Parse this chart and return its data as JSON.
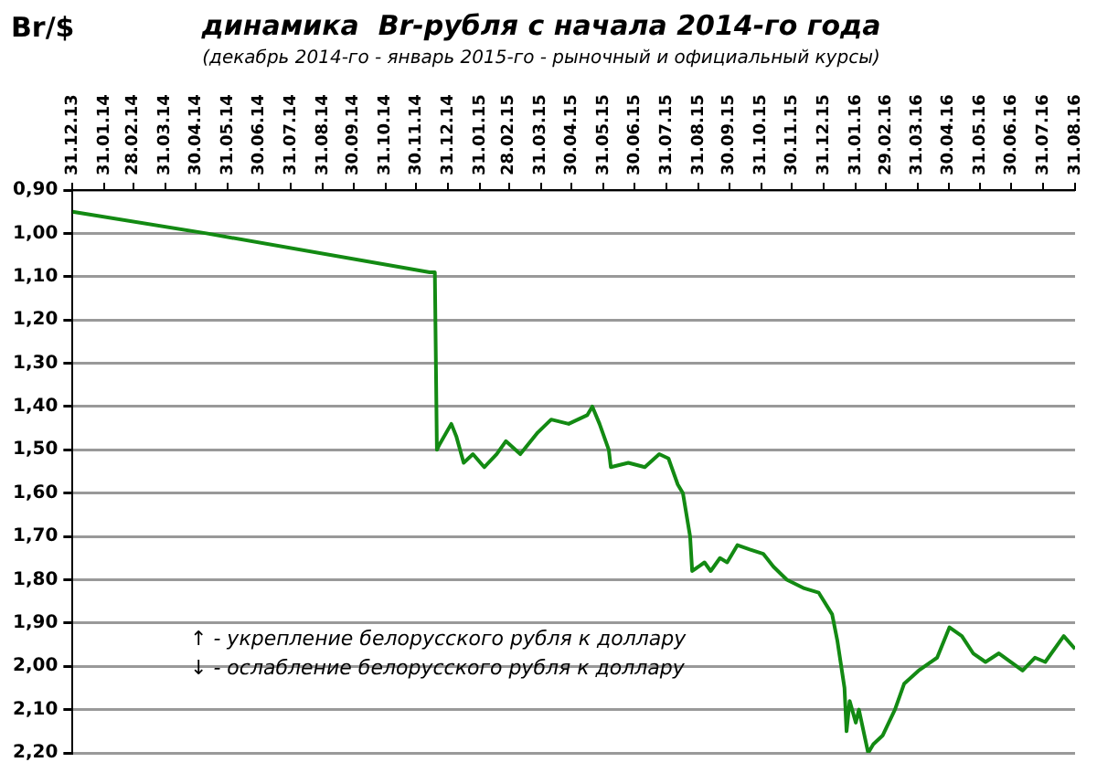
{
  "chart_data": {
    "type": "line",
    "title": "динамика  Br-рубля с начала 2014-го года",
    "subtitle": "(декабрь 2014-го - январь 2015-го - рыночный и официальный курсы)",
    "ylabel": "Br/$",
    "annotations": [
      "↑ - укрепление белорусского рубля к доллару",
      "↓ - ослабление белорусского рубля к доллару"
    ],
    "x": [
      "2013-12-31",
      "2014-05-10",
      "2014-12-13",
      "2014-12-18",
      "2014-12-20",
      "2014-12-22",
      "2015-01-03",
      "2015-01-08",
      "2015-01-15",
      "2015-01-24",
      "2015-02-04",
      "2015-02-16",
      "2015-02-25",
      "2015-03-11",
      "2015-03-28",
      "2015-04-10",
      "2015-04-27",
      "2015-05-15",
      "2015-05-20",
      "2015-05-27",
      "2015-06-05",
      "2015-06-07",
      "2015-06-24",
      "2015-07-10",
      "2015-07-24",
      "2015-08-02",
      "2015-08-11",
      "2015-08-16",
      "2015-08-23",
      "2015-08-25",
      "2015-09-06",
      "2015-09-12",
      "2015-09-21",
      "2015-09-28",
      "2015-10-08",
      "2015-10-20",
      "2015-11-02",
      "2015-11-12",
      "2015-11-25",
      "2015-12-12",
      "2015-12-26",
      "2016-01-08",
      "2016-01-13",
      "2016-01-20",
      "2016-01-22",
      "2016-01-25",
      "2016-01-31",
      "2016-02-03",
      "2016-02-12",
      "2016-02-17",
      "2016-02-26",
      "2016-03-09",
      "2016-03-18",
      "2016-04-01",
      "2016-04-19",
      "2016-05-01",
      "2016-05-13",
      "2016-05-24",
      "2016-06-05",
      "2016-06-18",
      "2016-07-11",
      "2016-07-23",
      "2016-08-02",
      "2016-08-20",
      "2016-08-31"
    ],
    "series": [
      {
        "color": "#138a13",
        "values": [
          0.95,
          1.0,
          1.09,
          1.09,
          1.5,
          1.49,
          1.44,
          1.47,
          1.53,
          1.51,
          1.54,
          1.51,
          1.48,
          1.51,
          1.46,
          1.43,
          1.44,
          1.42,
          1.4,
          1.44,
          1.5,
          1.54,
          1.53,
          1.54,
          1.51,
          1.52,
          1.58,
          1.6,
          1.7,
          1.78,
          1.76,
          1.78,
          1.75,
          1.76,
          1.72,
          1.73,
          1.74,
          1.77,
          1.8,
          1.82,
          1.83,
          1.88,
          1.94,
          2.05,
          2.15,
          2.08,
          2.13,
          2.1,
          2.2,
          2.18,
          2.16,
          2.1,
          2.04,
          2.01,
          1.98,
          1.91,
          1.93,
          1.97,
          1.99,
          1.97,
          2.01,
          1.98,
          1.99,
          1.93,
          1.96
        ]
      }
    ],
    "xlim": [
      "2013-12-31",
      "2016-08-31"
    ],
    "xticks": [
      {
        "value": "2013-12-31",
        "label": "31.12.13"
      },
      {
        "value": "2014-01-31",
        "label": "31.01.14"
      },
      {
        "value": "2014-02-28",
        "label": "28.02.14"
      },
      {
        "value": "2014-03-31",
        "label": "31.03.14"
      },
      {
        "value": "2014-04-30",
        "label": "30.04.14"
      },
      {
        "value": "2014-05-31",
        "label": "31.05.14"
      },
      {
        "value": "2014-06-30",
        "label": "30.06.14"
      },
      {
        "value": "2014-07-31",
        "label": "31.07.14"
      },
      {
        "value": "2014-08-31",
        "label": "31.08.14"
      },
      {
        "value": "2014-09-30",
        "label": "30.09.14"
      },
      {
        "value": "2014-10-31",
        "label": "31.10.14"
      },
      {
        "value": "2014-11-30",
        "label": "30.11.14"
      },
      {
        "value": "2014-12-31",
        "label": "31.12.14"
      },
      {
        "value": "2015-01-31",
        "label": "31.01.15"
      },
      {
        "value": "2015-02-28",
        "label": "28.02.15"
      },
      {
        "value": "2015-03-31",
        "label": "31.03.15"
      },
      {
        "value": "2015-04-30",
        "label": "30.04.15"
      },
      {
        "value": "2015-05-31",
        "label": "31.05.15"
      },
      {
        "value": "2015-06-30",
        "label": "30.06.15"
      },
      {
        "value": "2015-07-31",
        "label": "31.07.15"
      },
      {
        "value": "2015-08-31",
        "label": "31.08.15"
      },
      {
        "value": "2015-09-30",
        "label": "30.09.15"
      },
      {
        "value": "2015-10-31",
        "label": "31.10.15"
      },
      {
        "value": "2015-11-30",
        "label": "30.11.15"
      },
      {
        "value": "2015-12-31",
        "label": "31.12.15"
      },
      {
        "value": "2016-01-31",
        "label": "31.01.16"
      },
      {
        "value": "2016-02-29",
        "label": "29.02.16"
      },
      {
        "value": "2016-03-31",
        "label": "31.03.16"
      },
      {
        "value": "2016-04-30",
        "label": "30.04.16"
      },
      {
        "value": "2016-05-31",
        "label": "31.05.16"
      },
      {
        "value": "2016-06-30",
        "label": "30.06.16"
      },
      {
        "value": "2016-07-31",
        "label": "31.07.16"
      },
      {
        "value": "2016-08-31",
        "label": "31.08.16"
      }
    ],
    "ylim": [
      2.2,
      0.9
    ],
    "yticks": [
      {
        "value": 0.9,
        "label": "0,90"
      },
      {
        "value": 1.0,
        "label": "1,00"
      },
      {
        "value": 1.1,
        "label": "1,10"
      },
      {
        "value": 1.2,
        "label": "1,20"
      },
      {
        "value": 1.3,
        "label": "1,30"
      },
      {
        "value": 1.4,
        "label": "1,40"
      },
      {
        "value": 1.5,
        "label": "1,50"
      },
      {
        "value": 1.6,
        "label": "1,60"
      },
      {
        "value": 1.7,
        "label": "1,70"
      },
      {
        "value": 1.8,
        "label": "1,80"
      },
      {
        "value": 1.9,
        "label": "1,90"
      },
      {
        "value": 2.0,
        "label": "2,00"
      },
      {
        "value": 2.1,
        "label": "2,10"
      },
      {
        "value": 2.2,
        "label": "2,20"
      }
    ],
    "grid": "y",
    "legend": false,
    "marker": "none",
    "line_style": "solid"
  }
}
